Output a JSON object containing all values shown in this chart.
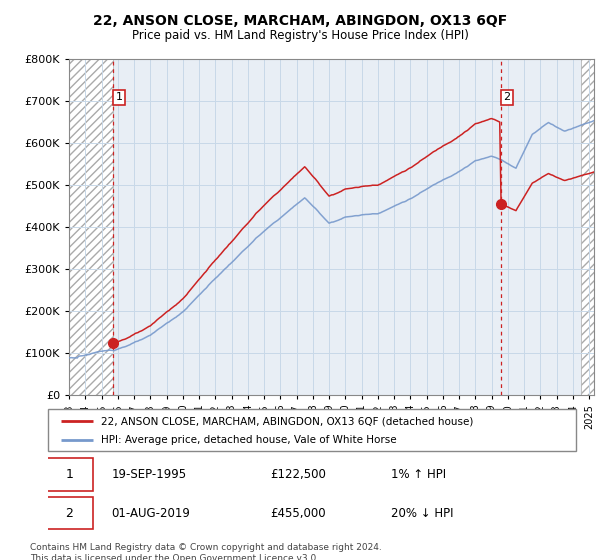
{
  "title": "22, ANSON CLOSE, MARCHAM, ABINGDON, OX13 6QF",
  "subtitle": "Price paid vs. HM Land Registry's House Price Index (HPI)",
  "sale1_year": 1995.708,
  "sale1_price": 122500,
  "sale2_year": 2019.583,
  "sale2_price": 455000,
  "legend_line1": "22, ANSON CLOSE, MARCHAM, ABINGDON, OX13 6QF (detached house)",
  "legend_line2": "HPI: Average price, detached house, Vale of White Horse",
  "footnote": "Contains HM Land Registry data © Crown copyright and database right 2024.\nThis data is licensed under the Open Government Licence v3.0.",
  "hpi_color": "#7799cc",
  "price_color": "#cc2222",
  "dot_color": "#cc2222",
  "vline_color": "#cc2222",
  "grid_color": "#c8d8e8",
  "bg_plot": "#e8eef5",
  "ylim": [
    0,
    800000
  ],
  "xlim_start": 1993.0,
  "xlim_end": 2025.3,
  "hatch_end": 1995.708,
  "hatch_right_start": 2024.5
}
